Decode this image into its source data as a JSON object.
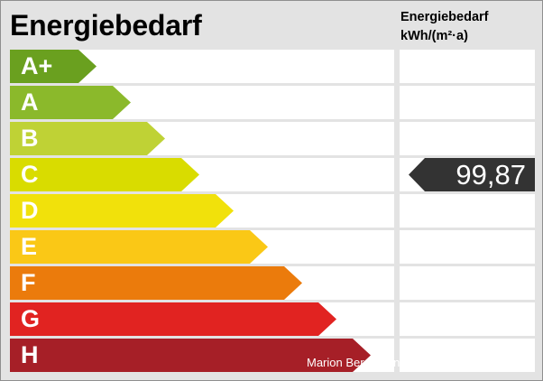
{
  "chart_data": {
    "type": "bar",
    "title": "Energiebedarf",
    "unit_label_line1": "Energiebedarf",
    "unit_label_line2": "kWh/(m²·a)",
    "categories": [
      "A+",
      "A",
      "B",
      "C",
      "D",
      "E",
      "F",
      "G",
      "H"
    ],
    "colors": [
      "#6aa01f",
      "#8bb92b",
      "#bfd235",
      "#d9dc00",
      "#f1e10b",
      "#fac816",
      "#eb7b0c",
      "#e12321",
      "#a61f27"
    ],
    "selected_category": "C",
    "value": "99,87",
    "grid": false
  },
  "watermark": "Marion Bergmann Immobilienberatung"
}
